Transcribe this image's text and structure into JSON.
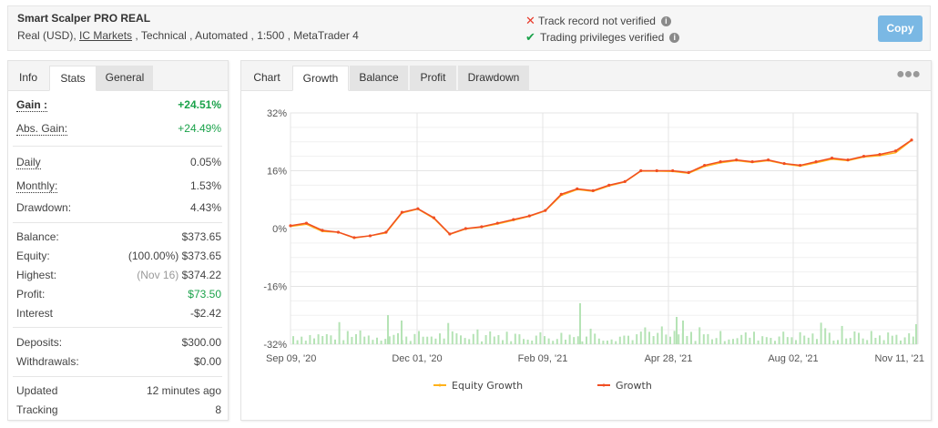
{
  "header": {
    "title": "Smart Scalper PRO REAL",
    "subtitle_prefix": "Real (USD), ",
    "broker_link": "IC Markets",
    "subtitle_suffix": " , Technical , Automated , 1:500 , MetaTrader 4",
    "verification": [
      {
        "icon": "x-icon",
        "text": "Track record not verified",
        "color": "#e8392a"
      },
      {
        "icon": "check-icon",
        "text": "Trading privileges verified",
        "color": "#1aa24a"
      }
    ],
    "copy_button": "Copy"
  },
  "stats_panel": {
    "tabs": [
      {
        "label": "Info",
        "state": "plain"
      },
      {
        "label": "Stats",
        "state": "active"
      },
      {
        "label": "General",
        "state": "grey"
      }
    ],
    "rows": {
      "gain": {
        "label": "Gain :",
        "value": "+24.51%"
      },
      "abs_gain": {
        "label": "Abs. Gain:",
        "value": "+24.49%"
      },
      "daily": {
        "label": "Daily",
        "value": "0.05%"
      },
      "monthly": {
        "label": "Monthly:",
        "value": "1.53%"
      },
      "drawdown": {
        "label": "Drawdown:",
        "value": "4.43%"
      },
      "balance": {
        "label": "Balance:",
        "value": "$373.65"
      },
      "equity": {
        "label": "Equity:",
        "note": "(100.00%)",
        "value": "$373.65"
      },
      "highest": {
        "label": "Highest:",
        "note": "(Nov 16)",
        "value": "$374.22"
      },
      "profit": {
        "label": "Profit:",
        "value": "$73.50"
      },
      "interest": {
        "label": "Interest",
        "value": "-$2.42"
      },
      "deposits": {
        "label": "Deposits:",
        "value": "$300.00"
      },
      "withdrawals": {
        "label": "Withdrawals:",
        "value": "$0.00"
      },
      "updated": {
        "label": "Updated",
        "value": "12 minutes ago"
      },
      "tracking": {
        "label": "Tracking",
        "value": "8"
      }
    }
  },
  "chart_panel": {
    "tabs": [
      {
        "label": "Chart",
        "state": "plain"
      },
      {
        "label": "Growth",
        "state": "active"
      },
      {
        "label": "Balance",
        "state": "grey"
      },
      {
        "label": "Profit",
        "state": "grey"
      },
      {
        "label": "Drawdown",
        "state": "grey"
      }
    ],
    "menu_icon": "more-dots-icon"
  },
  "colors": {
    "growth": "#f04e23",
    "equity": "#ffb21a",
    "bars": "#b5e3b5",
    "green_text": "#1aa24a",
    "copy_button": "#7ab8e4"
  },
  "chart_data": {
    "type": "line",
    "title": "Growth",
    "xlabel": "",
    "ylabel": "",
    "ylim": [
      -32,
      32
    ],
    "y_ticks": [
      "32%",
      "16%",
      "0%",
      "-16%",
      "-32%"
    ],
    "x_ticks": [
      "Sep 09, '20",
      "Dec 01, '20",
      "Feb 09, '21",
      "Apr 28, '21",
      "Aug 02, '21",
      "Nov 11, '21"
    ],
    "grid": true,
    "legend_position": "bottom",
    "legend": [
      "Equity Growth",
      "Growth"
    ],
    "x": [
      "Sep 09, '20",
      "Sep 20, '20",
      "Oct 01, '20",
      "Oct 12, '20",
      "Oct 23, '20",
      "Nov 03, '20",
      "Nov 14, '20",
      "Nov 25, '20",
      "Dec 01, '20",
      "Dec 12, '20",
      "Dec 23, '20",
      "Jan 03, '21",
      "Jan 14, '21",
      "Jan 25, '21",
      "Feb 09, '21",
      "Feb 20, '21",
      "Mar 03, '21",
      "Mar 14, '21",
      "Mar 25, '21",
      "Apr 05, '21",
      "Apr 16, '21",
      "Apr 28, '21",
      "May 09, '21",
      "May 20, '21",
      "Jun 01, '21",
      "Jun 12, '21",
      "Jun 23, '21",
      "Jul 04, '21",
      "Jul 15, '21",
      "Aug 02, '21",
      "Aug 13, '21",
      "Aug 24, '21",
      "Sep 04, '21",
      "Sep 15, '21",
      "Sep 26, '21",
      "Oct 07, '21",
      "Oct 18, '21",
      "Oct 29, '21",
      "Nov 11, '21",
      "Nov 16, '21"
    ],
    "series": [
      {
        "name": "Growth",
        "values": [
          0.8,
          1.5,
          -0.5,
          -1.0,
          -2.5,
          -2.0,
          -1.0,
          4.5,
          5.5,
          3.0,
          -1.5,
          0.0,
          0.5,
          1.5,
          2.5,
          3.5,
          5.0,
          9.5,
          11.0,
          10.5,
          12.0,
          13.0,
          16.0,
          16.0,
          16.0,
          15.5,
          17.5,
          18.5,
          19.0,
          18.5,
          19.0,
          18.0,
          17.5,
          18.5,
          19.5,
          19.0,
          20.0,
          20.5,
          21.5,
          24.5
        ]
      },
      {
        "name": "Equity Growth",
        "values": [
          0.6,
          1.2,
          -0.8,
          -1.0,
          -2.6,
          -2.0,
          -1.2,
          4.3,
          5.4,
          2.8,
          -1.6,
          -0.1,
          0.4,
          1.3,
          2.3,
          3.4,
          4.9,
          9.2,
          10.8,
          10.3,
          11.8,
          12.9,
          15.9,
          15.9,
          15.8,
          15.3,
          17.2,
          18.2,
          18.8,
          18.3,
          18.8,
          17.9,
          17.3,
          18.2,
          19.2,
          18.8,
          19.8,
          20.2,
          21.0,
          24.4
        ]
      }
    ],
    "bars_note": "green per-trade volume bars along the bottom of the plot (unlabeled)"
  }
}
